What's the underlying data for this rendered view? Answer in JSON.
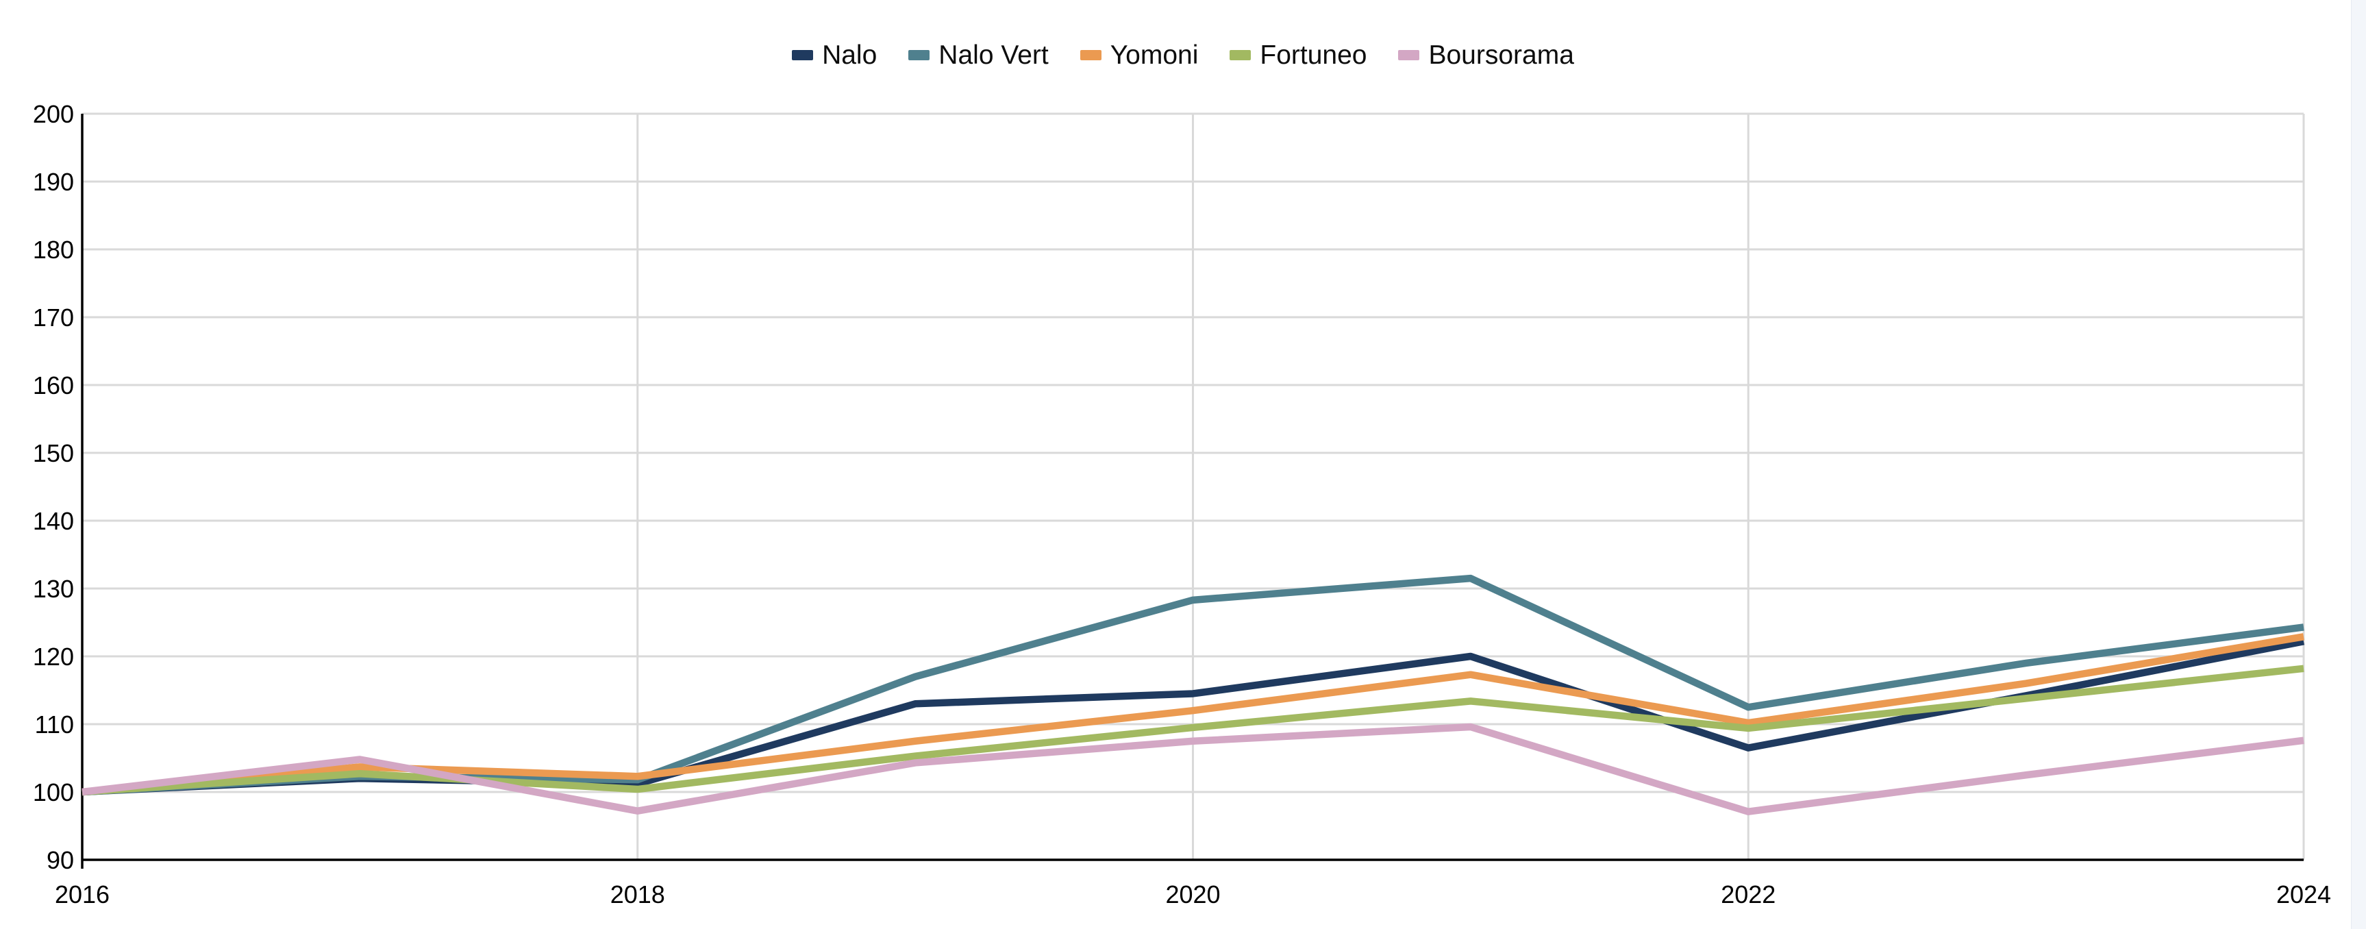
{
  "chart_data": {
    "type": "line",
    "title": "",
    "x": [
      2016,
      2017,
      2018,
      2019,
      2020,
      2021,
      2022,
      2023,
      2024
    ],
    "x_tick_labels": [
      "2016",
      "2018",
      "2020",
      "2022",
      "2024"
    ],
    "grid_years": [
      2018,
      2020,
      2022
    ],
    "y_ticks": [
      90,
      100,
      110,
      120,
      130,
      140,
      150,
      160,
      170,
      180,
      190,
      200
    ],
    "ylim": [
      90,
      200
    ],
    "xlim": [
      2016,
      2024
    ],
    "xlabel": "",
    "ylabel": "",
    "legend_position": "top-center",
    "grid": "horizontal-and-even-year-vertical",
    "series": [
      {
        "name": "Nalo",
        "color": "#1f3a5f",
        "values": [
          100,
          102.0,
          101.2,
          113.0,
          114.5,
          120.0,
          106.5,
          114.2,
          122.2
        ]
      },
      {
        "name": "Nalo Vert",
        "color": "#4f808e",
        "values": [
          100,
          102.3,
          101.8,
          117.0,
          128.3,
          131.5,
          112.5,
          119.0,
          124.3
        ]
      },
      {
        "name": "Yomoni",
        "color": "#eb9a51",
        "values": [
          100,
          103.7,
          102.3,
          107.5,
          112.0,
          117.3,
          110.2,
          116.0,
          122.9
        ]
      },
      {
        "name": "Fortuneo",
        "color": "#a2b961",
        "values": [
          100,
          102.7,
          100.4,
          105.3,
          109.5,
          113.4,
          109.4,
          113.8,
          118.2
        ]
      },
      {
        "name": "Boursorama",
        "color": "#d3a7c4",
        "values": [
          100,
          104.8,
          97.2,
          104.3,
          107.5,
          109.6,
          97.1,
          102.5,
          107.6
        ]
      }
    ]
  },
  "style_colors": {
    "background": "#ffffff",
    "grid_line": "#d9d9d9",
    "axis_line": "#000000",
    "tick_text": "#000000",
    "legend_text": "#0d0d0d"
  }
}
